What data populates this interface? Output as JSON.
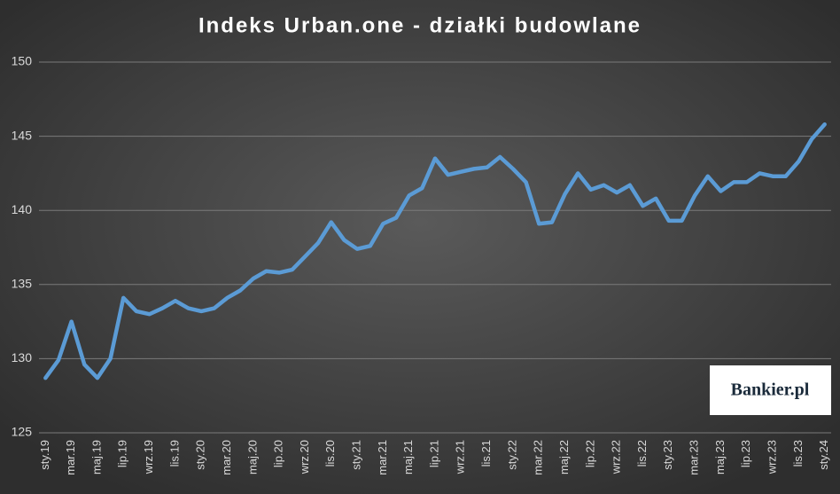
{
  "chart_data": {
    "type": "line",
    "title": "Indeks Urban.one - działki budowlane",
    "logo": "Bankier.pl",
    "categories": [
      "sty.19",
      null,
      "mar.19",
      null,
      "maj.19",
      null,
      "lip.19",
      null,
      "wrz.19",
      null,
      "lis.19",
      null,
      "sty.20",
      null,
      "mar.20",
      null,
      "maj.20",
      null,
      "lip.20",
      null,
      "wrz.20",
      null,
      "lis.20",
      null,
      "sty.21",
      null,
      "mar.21",
      null,
      "maj.21",
      null,
      "lip.21",
      null,
      "wrz.21",
      null,
      "lis.21",
      null,
      "sty.22",
      null,
      "mar.22",
      null,
      "maj.22",
      null,
      "lip.22",
      null,
      "wrz.22",
      null,
      "lis.22",
      null,
      "sty.23",
      null,
      "mar.23",
      null,
      "maj.23",
      null,
      "lip.23",
      null,
      "wrz.23",
      null,
      "lis.23",
      null,
      "sty.24"
    ],
    "series": [
      {
        "name": "Indeks",
        "color": "#5b9bd5",
        "values": [
          128.7,
          129.9,
          132.5,
          129.6,
          128.7,
          130.0,
          134.1,
          133.2,
          133.0,
          133.4,
          133.9,
          133.4,
          133.2,
          133.4,
          134.1,
          134.6,
          135.4,
          135.9,
          135.8,
          136.0,
          136.9,
          137.8,
          139.2,
          138.0,
          137.4,
          137.6,
          139.1,
          139.5,
          141.0,
          141.5,
          143.5,
          142.4,
          142.6,
          142.8,
          142.9,
          143.6,
          142.8,
          141.9,
          139.1,
          139.2,
          141.1,
          142.5,
          141.4,
          141.7,
          141.2,
          141.7,
          140.3,
          140.8,
          139.3,
          139.3,
          141.0,
          142.3,
          141.3,
          141.9,
          141.9,
          142.5,
          142.3,
          142.3,
          143.3,
          144.8,
          145.8
        ]
      }
    ],
    "ylim": [
      125,
      150
    ],
    "yticks": [
      125,
      130,
      135,
      140,
      145,
      150
    ],
    "grid": true
  }
}
